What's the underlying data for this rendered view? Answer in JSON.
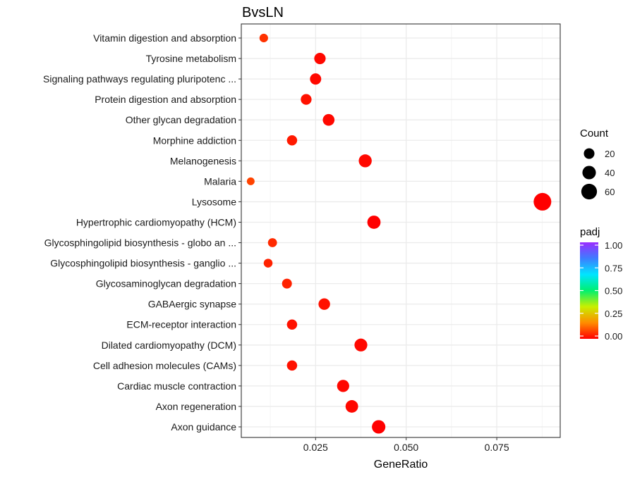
{
  "chart_data": {
    "type": "scatter",
    "title": "BvsLN",
    "xlabel": "GeneRatio",
    "ylabel": "",
    "xlim": [
      0.0045,
      0.0925
    ],
    "x_ticks": [
      {
        "value": 0.025,
        "label": "0.025"
      },
      {
        "value": 0.05,
        "label": "0.050"
      },
      {
        "value": 0.075,
        "label": "0.075"
      }
    ],
    "grid": true,
    "legend_position": "right",
    "size_legend": {
      "title": "Count",
      "entries": [
        {
          "value": 20,
          "label": "20"
        },
        {
          "value": 40,
          "label": "40"
        },
        {
          "value": 60,
          "label": "60"
        }
      ]
    },
    "color_legend": {
      "title": "padj",
      "range": [
        0,
        1
      ],
      "ticks": [
        {
          "value": 1.0,
          "label": "1.00"
        },
        {
          "value": 0.75,
          "label": "0.75"
        },
        {
          "value": 0.5,
          "label": "0.50"
        },
        {
          "value": 0.25,
          "label": "0.25"
        },
        {
          "value": 0.0,
          "label": "0.00"
        }
      ],
      "colors": [
        "#ff0000",
        "#ff8c00",
        "#c8f000",
        "#00f070",
        "#00e5ff",
        "#3d7dff",
        "#9b2cff"
      ]
    },
    "points": [
      {
        "term": "Vitamin digestion and absorption",
        "gene_ratio": 0.0107,
        "count": 10,
        "padj": 0.06
      },
      {
        "term": "Tyrosine metabolism",
        "gene_ratio": 0.0262,
        "count": 25,
        "padj": 0.01
      },
      {
        "term": "Signaling pathways regulating pluripotenc ...",
        "gene_ratio": 0.025,
        "count": 24,
        "padj": 0.01
      },
      {
        "term": "Protein digestion and absorption",
        "gene_ratio": 0.0224,
        "count": 21,
        "padj": 0.02
      },
      {
        "term": "Other glycan degradation",
        "gene_ratio": 0.0286,
        "count": 27,
        "padj": 0.01
      },
      {
        "term": "Morphine addiction",
        "gene_ratio": 0.0185,
        "count": 18,
        "padj": 0.03
      },
      {
        "term": "Melanogenesis",
        "gene_ratio": 0.0387,
        "count": 36,
        "padj": 0.01
      },
      {
        "term": "Malaria",
        "gene_ratio": 0.0071,
        "count": 7,
        "padj": 0.08
      },
      {
        "term": "Lysosome",
        "gene_ratio": 0.0876,
        "count": 81,
        "padj": 0.0
      },
      {
        "term": "Hypertrophic cardiomyopathy (HCM)",
        "gene_ratio": 0.0411,
        "count": 38,
        "padj": 0.0
      },
      {
        "term": "Glycosphingolipid biosynthesis - globo an ...",
        "gene_ratio": 0.0131,
        "count": 12,
        "padj": 0.05
      },
      {
        "term": "Glycosphingolipid biosynthesis - ganglio  ...",
        "gene_ratio": 0.0119,
        "count": 11,
        "padj": 0.04
      },
      {
        "term": "Glycosaminoglycan degradation",
        "gene_ratio": 0.0171,
        "count": 16,
        "padj": 0.04
      },
      {
        "term": "GABAergic synapse",
        "gene_ratio": 0.0274,
        "count": 26,
        "padj": 0.02
      },
      {
        "term": "ECM-receptor interaction",
        "gene_ratio": 0.0185,
        "count": 18,
        "padj": 0.02
      },
      {
        "term": "Dilated cardiomyopathy (DCM)",
        "gene_ratio": 0.0375,
        "count": 35,
        "padj": 0.01
      },
      {
        "term": "Cell adhesion molecules (CAMs)",
        "gene_ratio": 0.0185,
        "count": 18,
        "padj": 0.02
      },
      {
        "term": "Cardiac muscle contraction",
        "gene_ratio": 0.0326,
        "count": 30,
        "padj": 0.01
      },
      {
        "term": "Axon regeneration",
        "gene_ratio": 0.035,
        "count": 33,
        "padj": 0.01
      },
      {
        "term": "Axon guidance",
        "gene_ratio": 0.0424,
        "count": 40,
        "padj": 0.0
      }
    ]
  }
}
